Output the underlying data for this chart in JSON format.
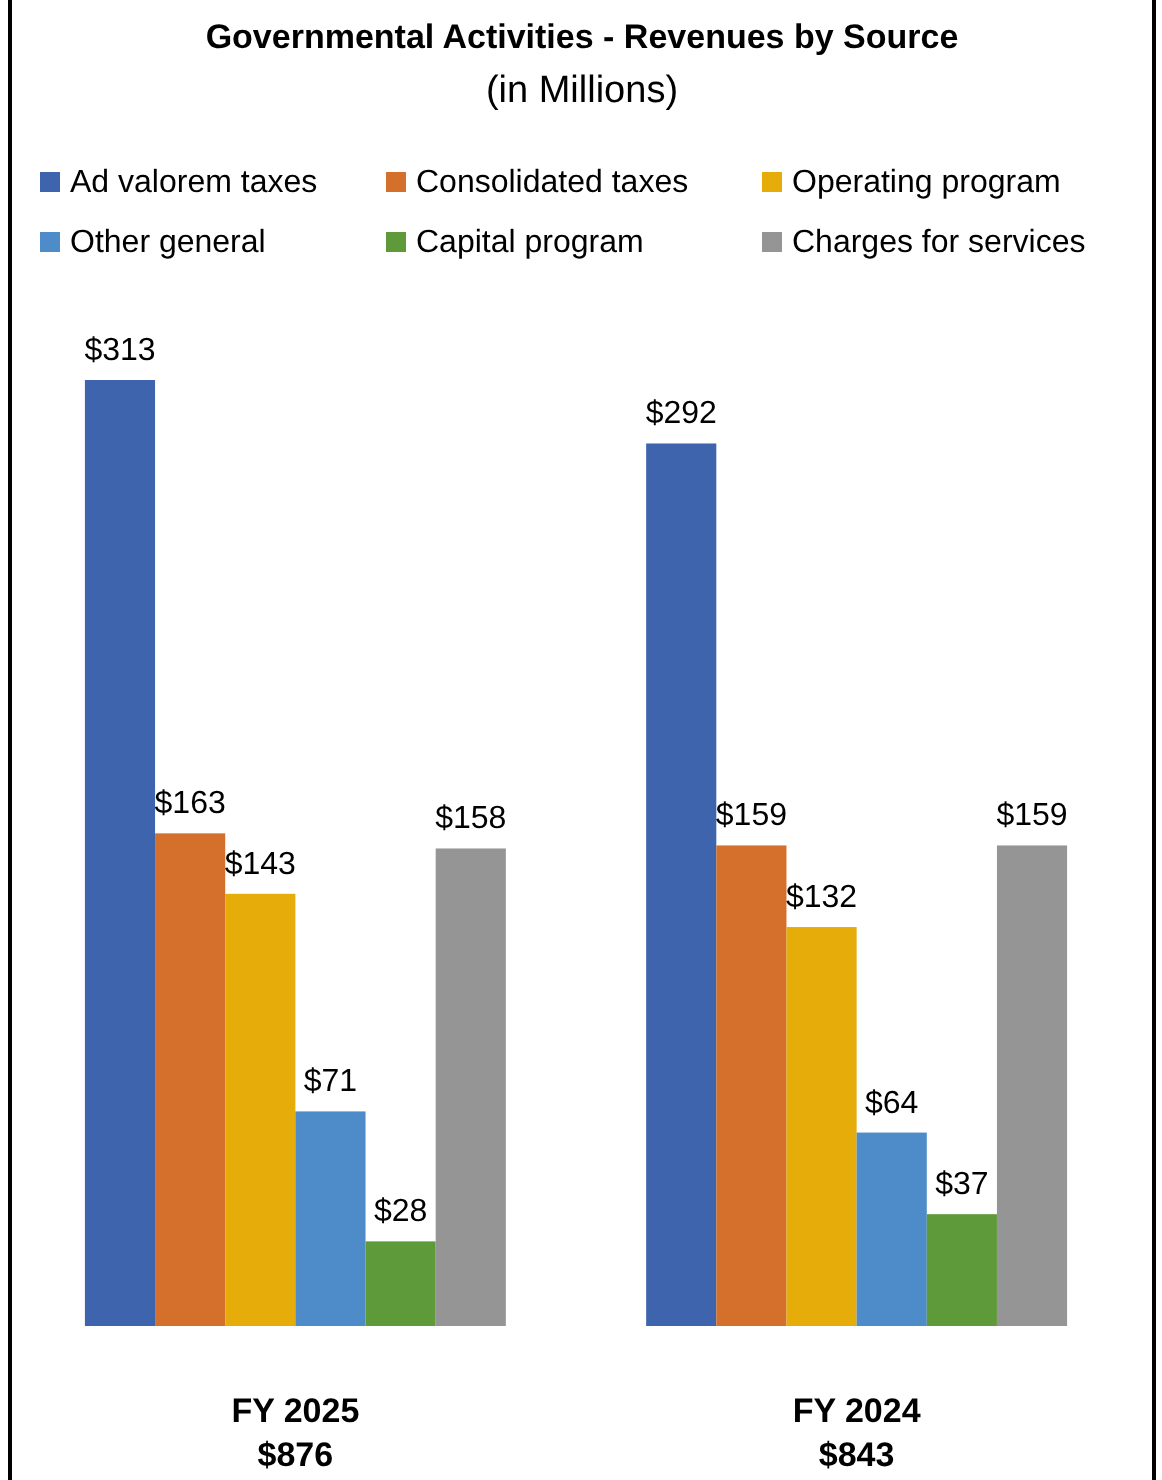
{
  "chart_data": {
    "type": "bar",
    "title": "Governmental Activities - Revenues by Source",
    "subtitle": "(in Millions)",
    "categories": [
      "FY 2025\n$876",
      "FY 2024\n$843"
    ],
    "legend": "top",
    "series": [
      {
        "name": "Ad valorem taxes",
        "color": "#3e64ae",
        "values": [
          313,
          292
        ],
        "value_labels": [
          "$313",
          "$292"
        ]
      },
      {
        "name": "Consolidated taxes",
        "color": "#d4702c",
        "values": [
          163,
          159
        ],
        "value_labels": [
          "$163",
          "$159"
        ]
      },
      {
        "name": "Operating program",
        "color": "#e5ac0a",
        "values": [
          143,
          132
        ],
        "value_labels": [
          "$143",
          "$132"
        ]
      },
      {
        "name": "Other general",
        "color": "#4d8cc8",
        "values": [
          71,
          64
        ],
        "value_labels": [
          "$71",
          "$64"
        ]
      },
      {
        "name": "Capital program",
        "color": "#5e9a3a",
        "values": [
          28,
          37
        ],
        "value_labels": [
          "$28",
          "$37"
        ]
      },
      {
        "name": "Charges for services",
        "color": "#959595",
        "values": [
          158,
          159
        ],
        "value_labels": [
          "$158",
          "$159"
        ]
      }
    ]
  }
}
